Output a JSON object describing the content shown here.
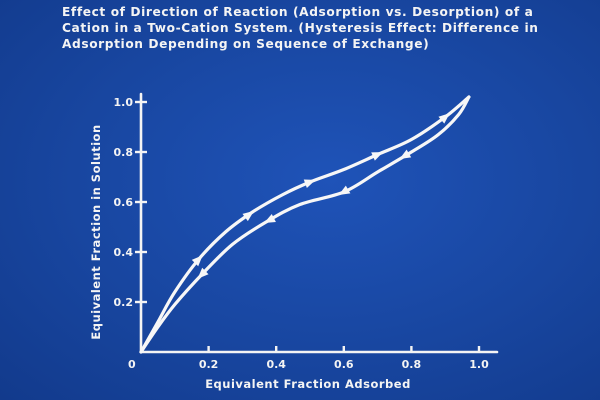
{
  "slide": {
    "title_lines": [
      "Effect of Direction of Reaction (Adsorption vs. Desorption) of a",
      "Cation in a Two-Cation System. (Hysteresis Effect: Difference in",
      "Adsorption Depending on Sequence of Exchange)"
    ],
    "background_color": "#1846a0",
    "foreground_color": "#f4f4f4"
  },
  "chart_data": {
    "type": "line",
    "title": "Effect of Direction of Reaction (Adsorption vs. Desorption) of a Cation in a Two-Cation System. (Hysteresis Effect: Difference in Adsorption Depending on Sequence of Exchange)",
    "xlabel": "Equivalent Fraction Adsorbed",
    "ylabel": "Equivalent Fraction in Solution",
    "xlim": [
      0,
      1.0
    ],
    "ylim": [
      0,
      1.0
    ],
    "x_ticks": [
      "0.2",
      "0.4",
      "0.6",
      "0.8",
      "1.0"
    ],
    "y_ticks": [
      "0.2",
      "0.4",
      "0.6",
      "0.8",
      "1.0"
    ],
    "origin_label": "0",
    "grid": false,
    "legend": "none",
    "series": [
      {
        "direction": "forward",
        "x": [
          0,
          0.05,
          0.1,
          0.17,
          0.25,
          0.33,
          0.42,
          0.5,
          0.6,
          0.7,
          0.8,
          0.9,
          0.97
        ],
        "y": [
          0,
          0.12,
          0.24,
          0.37,
          0.48,
          0.56,
          0.63,
          0.68,
          0.73,
          0.79,
          0.85,
          0.94,
          1.02
        ],
        "arrows_at": [
          0.17,
          0.32,
          0.5,
          0.7,
          0.9
        ]
      },
      {
        "direction": "reverse",
        "x": [
          0,
          0.05,
          0.1,
          0.18,
          0.27,
          0.37,
          0.47,
          0.6,
          0.7,
          0.8,
          0.88,
          0.94,
          0.97
        ],
        "y": [
          0,
          0.1,
          0.19,
          0.31,
          0.43,
          0.52,
          0.59,
          0.64,
          0.72,
          0.8,
          0.87,
          0.95,
          1.02
        ],
        "arrows_at": [
          0.78,
          0.6,
          0.38,
          0.18
        ]
      }
    ]
  }
}
